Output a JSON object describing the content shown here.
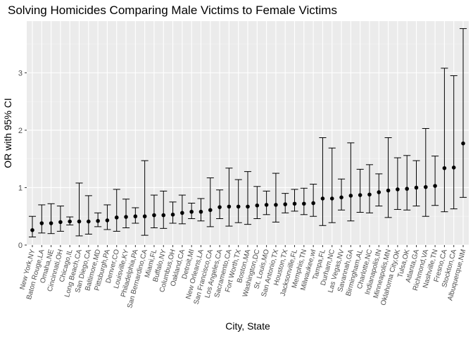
{
  "chart_data": {
    "type": "scatter",
    "title": "Solving Homicides Comparing Male Victims to Female Victims",
    "xlabel": "City, State",
    "ylabel": "OR with 95% CI",
    "ylim": [
      0,
      3.9
    ],
    "yticks": [
      0,
      1,
      2,
      3
    ],
    "grid": true,
    "error_bars": true,
    "categories": [
      "New York,NY",
      "Baton Rouge,LA",
      "Omaha,NE",
      "Cincinnati,OH",
      "Chicago,IL",
      "Long Beach,CA",
      "San Diego,CA",
      "Baltimore,MD",
      "Pittsburgh,PA",
      "Denver,CO",
      "Louisville,KY",
      "Philadelphia,PA",
      "San Bernardino,CA",
      "Miami,FL",
      "Buffalo,NY",
      "Columbus,OH",
      "Oakland,CA",
      "Detroit,MI",
      "New Orleans,LA",
      "San Francisco,CA",
      "Los Angeles,CA",
      "Sacramento,CA",
      "Fort Worth,TX",
      "Boston,MA",
      "Washington,DC",
      "St. Louis,MO",
      "San Antonio,TX",
      "Houston,TX",
      "Jacksonville,FL",
      "Memphis,TN",
      "Milwaukee,wI",
      "Tampa,FL",
      "Durham,NC",
      "Las Vegas,NV",
      "Savannah,GA",
      "Birmingham,AL",
      "Charlotte,NC",
      "Indianapolis,IN",
      "Minneapolis,MN",
      "Oklahoma City,OK",
      "Tulsa,OK",
      "Atlanta,GA",
      "Richmond,VA",
      "Nashville,TN",
      "Fresno,CA",
      "Stockton,CA",
      "Albuquerque,NM"
    ],
    "estimate": [
      0.26,
      0.38,
      0.38,
      0.4,
      0.41,
      0.41,
      0.41,
      0.42,
      0.43,
      0.48,
      0.49,
      0.5,
      0.5,
      0.52,
      0.52,
      0.53,
      0.56,
      0.58,
      0.58,
      0.61,
      0.66,
      0.67,
      0.67,
      0.67,
      0.69,
      0.7,
      0.7,
      0.71,
      0.72,
      0.72,
      0.73,
      0.81,
      0.81,
      0.83,
      0.86,
      0.87,
      0.88,
      0.92,
      0.95,
      0.97,
      0.98,
      1.0,
      1.01,
      1.03,
      1.34,
      1.35,
      1.77
    ],
    "lower": [
      0.14,
      0.21,
      0.2,
      0.24,
      0.35,
      0.16,
      0.19,
      0.32,
      0.27,
      0.24,
      0.3,
      0.38,
      0.17,
      0.3,
      0.29,
      0.38,
      0.37,
      0.46,
      0.42,
      0.32,
      0.46,
      0.33,
      0.39,
      0.36,
      0.46,
      0.53,
      0.4,
      0.56,
      0.59,
      0.53,
      0.5,
      0.34,
      0.39,
      0.61,
      0.42,
      0.57,
      0.56,
      0.68,
      0.48,
      0.62,
      0.61,
      0.68,
      0.5,
      0.69,
      0.58,
      0.63,
      0.83
    ],
    "upper": [
      0.5,
      0.7,
      0.72,
      0.68,
      0.49,
      1.08,
      0.86,
      0.56,
      0.7,
      0.97,
      0.8,
      0.65,
      1.47,
      0.87,
      0.94,
      0.75,
      0.87,
      0.73,
      0.81,
      1.17,
      0.96,
      1.34,
      1.14,
      1.28,
      1.02,
      0.94,
      1.25,
      0.9,
      0.97,
      0.99,
      1.06,
      1.87,
      1.69,
      1.15,
      1.78,
      1.32,
      1.4,
      1.24,
      1.87,
      1.52,
      1.56,
      1.47,
      2.03,
      1.55,
      3.08,
      2.95,
      3.77
    ]
  }
}
